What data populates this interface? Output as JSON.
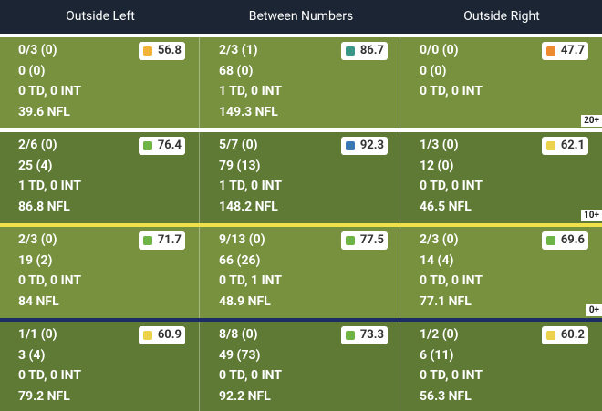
{
  "columns": [
    "Outside Left",
    "Between Numbers",
    "Outside Right"
  ],
  "rows": [
    {
      "marker": "20+",
      "cells": [
        {
          "grade": 56.8,
          "color": "#f2b33a",
          "lines": [
            "0/3 (0)",
            "0 (0)",
            "0 TD, 0 INT",
            "39.6 NFL"
          ]
        },
        {
          "grade": 86.7,
          "color": "#3b9688",
          "lines": [
            "2/3 (1)",
            "68 (0)",
            "1 TD, 0 INT",
            "149.3 NFL"
          ]
        },
        {
          "grade": 47.7,
          "color": "#ec8a2e",
          "lines": [
            "0/0 (0)",
            "0 (0)",
            "0 TD, 0 INT"
          ]
        }
      ]
    },
    {
      "marker": "10+",
      "cells": [
        {
          "grade": 76.4,
          "color": "#6db346",
          "lines": [
            "2/6 (0)",
            "25 (4)",
            "1 TD, 0 INT",
            "86.8 NFL"
          ]
        },
        {
          "grade": 92.3,
          "color": "#3a77b5",
          "lines": [
            "5/7 (0)",
            "79 (13)",
            "1 TD, 0 INT",
            "148.2 NFL"
          ]
        },
        {
          "grade": 62.1,
          "color": "#ecd24a",
          "lines": [
            "1/3 (0)",
            "12 (0)",
            "0 TD, 0 INT",
            "46.5 NFL"
          ]
        }
      ]
    },
    {
      "marker": "0+",
      "cells": [
        {
          "grade": 71.7,
          "color": "#6db346",
          "lines": [
            "2/3 (0)",
            "19 (2)",
            "0 TD, 0 INT",
            "84 NFL"
          ]
        },
        {
          "grade": 77.5,
          "color": "#6db346",
          "lines": [
            "9/13 (0)",
            "66 (26)",
            "0 TD, 1 INT",
            "48.9 NFL"
          ]
        },
        {
          "grade": 69.6,
          "color": "#6db346",
          "lines": [
            "2/3 (0)",
            "14 (4)",
            "0 TD, 0 INT",
            "77.1 NFL"
          ]
        }
      ]
    },
    {
      "cells": [
        {
          "grade": 60.9,
          "color": "#ecd24a",
          "lines": [
            "1/1 (0)",
            "3 (4)",
            "0 TD, 0 INT",
            "79.2 NFL"
          ]
        },
        {
          "grade": 73.3,
          "color": "#6db346",
          "lines": [
            "8/8 (0)",
            "49 (73)",
            "0 TD, 0 INT",
            "92.2 NFL"
          ]
        },
        {
          "grade": 60.2,
          "color": "#ecd24a",
          "lines": [
            "1/2 (0)",
            "6 (11)",
            "0 TD, 0 INT",
            "56.3 NFL"
          ]
        }
      ]
    }
  ]
}
